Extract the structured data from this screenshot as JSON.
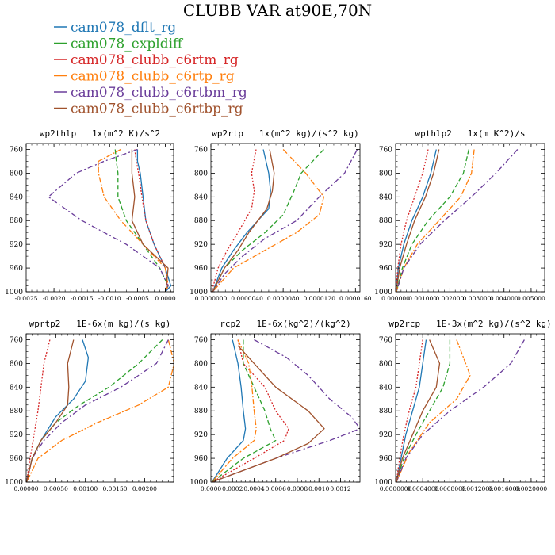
{
  "title": "CLUBB VAR at90E,70N",
  "series_styles": [
    {
      "color": "#1f77b4",
      "dash": ""
    },
    {
      "color": "#2ca02c",
      "dash": "6,3"
    },
    {
      "color": "#d62728",
      "dash": "2,2"
    },
    {
      "color": "#ff7f0e",
      "dash": "7,2,2,2"
    },
    {
      "color": "#6a3d9a",
      "dash": "7,3,2,3"
    },
    {
      "color": "#a0522d",
      "dash": ""
    }
  ],
  "legend": [
    "cam078_dflt_rg",
    "cam078_expldiff",
    "cam078_clubb_c6rtm_rg",
    "cam078_clubb_c6rtp_rg",
    "cam078_clubb_c6rtbm_rg",
    "cam078_clubb_c6rtbp_rg"
  ],
  "chart_data": [
    {
      "type": "line",
      "title": "wp2thlp   1x(m^2 K)/s^2",
      "xlim": [
        -0.0025,
        0.00015
      ],
      "ylim": [
        1000,
        750
      ],
      "xticks": [
        -0.0025,
        -0.002,
        -0.0015,
        -0.001,
        -0.0005,
        0
      ],
      "xtick_labels": [
        "-0.0025",
        "-0.0020",
        "-0.0015",
        "-0.0010",
        "-0.0005",
        "0.0000"
      ],
      "yticks": [
        760,
        800,
        840,
        880,
        920,
        960,
        1000
      ],
      "series": [
        {
          "name": "cam078_dflt_rg",
          "x": [
            -0.0005,
            -0.0005,
            -0.00045,
            -0.0004,
            -0.00035,
            -0.0002,
            0.0,
            0.0001,
            0.0
          ],
          "y": [
            760,
            780,
            800,
            840,
            880,
            920,
            960,
            990,
            1000
          ]
        },
        {
          "name": "cam078_expldiff",
          "x": [
            -0.0009,
            -0.00088,
            -0.00085,
            -0.00085,
            -0.0007,
            -0.0004,
            -0.0001,
            5e-05,
            0.0
          ],
          "y": [
            760,
            780,
            800,
            840,
            880,
            920,
            960,
            990,
            1000
          ]
        },
        {
          "name": "cam078_clubb_c6rtm_rg",
          "x": [
            -0.00055,
            -0.00052,
            -0.00048,
            -0.00042,
            -0.00035,
            -0.0002,
            0.0,
            5e-05,
            0.0
          ],
          "y": [
            760,
            780,
            800,
            840,
            880,
            920,
            960,
            990,
            1000
          ]
        },
        {
          "name": "cam078_clubb_c6rtp_rg",
          "x": [
            -0.0008,
            -0.0012,
            -0.0012,
            -0.0011,
            -0.0008,
            -0.0004,
            0.0,
            5e-05,
            0.0
          ],
          "y": [
            760,
            780,
            800,
            840,
            880,
            920,
            960,
            990,
            1000
          ]
        },
        {
          "name": "cam078_clubb_c6rtbm_rg",
          "x": [
            -0.0005,
            -0.0011,
            -0.0016,
            -0.0021,
            -0.0015,
            -0.0007,
            -0.0001,
            5e-05,
            0.0
          ],
          "y": [
            760,
            780,
            800,
            840,
            880,
            920,
            960,
            990,
            1000
          ]
        },
        {
          "name": "cam078_clubb_c6rtbp_rg",
          "x": [
            -0.0006,
            -0.0006,
            -0.0006,
            -0.00055,
            -0.0006,
            -0.0004,
            5e-05,
            2e-05,
            0.0
          ],
          "y": [
            760,
            780,
            800,
            840,
            880,
            920,
            960,
            990,
            1000
          ]
        }
      ]
    },
    {
      "type": "line",
      "title": "wp2rtp   1x(m^2 kg)/(s^2 kg)",
      "xlim": [
        0,
        1.65e-05
      ],
      "ylim": [
        1000,
        750
      ],
      "xticks": [
        0,
        4e-06,
        8e-06,
        1.2e-05,
        1.6e-05
      ],
      "xtick_labels": [
        "0.0000000",
        "0.0000040",
        "0.0000080",
        "0.0000120",
        "0.0000160"
      ],
      "yticks": [
        760,
        800,
        840,
        880,
        920,
        960,
        1000
      ],
      "series": [
        {
          "name": "cam078_dflt_rg",
          "x": [
            5.8e-06,
            6.4e-06,
            6.6e-06,
            6.4e-06,
            4e-06,
            2.5e-06,
            1.2e-06,
            2e-07
          ],
          "y": [
            760,
            800,
            830,
            860,
            900,
            930,
            960,
            1000
          ]
        },
        {
          "name": "cam078_expldiff",
          "x": [
            1.25e-05,
            1e-05,
            9.2e-06,
            8e-06,
            6e-06,
            3.5e-06,
            1.5e-06,
            2e-07
          ],
          "y": [
            760,
            800,
            830,
            870,
            900,
            930,
            960,
            1000
          ]
        },
        {
          "name": "cam078_clubb_c6rtm_rg",
          "x": [
            5e-06,
            4.5e-06,
            4.8e-06,
            4.5e-06,
            3e-06,
            1.8e-06,
            8e-07,
            1e-07
          ],
          "y": [
            760,
            800,
            830,
            860,
            900,
            930,
            960,
            1000
          ]
        },
        {
          "name": "cam078_clubb_c6rtp_rg",
          "x": [
            8e-06,
            1.05e-05,
            1.25e-05,
            1.2e-05,
            9.5e-06,
            6e-06,
            2.5e-06,
            2e-07
          ],
          "y": [
            760,
            800,
            840,
            870,
            900,
            930,
            960,
            1000
          ]
        },
        {
          "name": "cam078_clubb_c6rtbm_rg",
          "x": [
            1.62e-05,
            1.48e-05,
            1.2e-05,
            9.5e-06,
            6e-06,
            3.5e-06,
            1.5e-06,
            2e-07
          ],
          "y": [
            760,
            800,
            840,
            880,
            910,
            940,
            970,
            1000
          ]
        },
        {
          "name": "cam078_clubb_c6rtbp_rg",
          "x": [
            6.5e-06,
            7e-06,
            6.8e-06,
            6.2e-06,
            4.2e-06,
            3e-06,
            1.5e-06,
            2e-07
          ],
          "y": [
            760,
            800,
            830,
            860,
            900,
            930,
            960,
            1000
          ]
        }
      ]
    },
    {
      "type": "line",
      "title": "wpthlp2   1x(m K^2)/s",
      "xlim": [
        0,
        0.0055
      ],
      "ylim": [
        1000,
        750
      ],
      "xticks": [
        0,
        0.001,
        0.002,
        0.003,
        0.004,
        0.005
      ],
      "xtick_labels": [
        "0.000000",
        "0.001000",
        "0.002000",
        "0.003000",
        "0.004000",
        "0.005000"
      ],
      "yticks": [
        760,
        800,
        840,
        880,
        920,
        960,
        1000
      ],
      "series": [
        {
          "name": "cam078_dflt_rg",
          "x": [
            0.0015,
            0.0013,
            0.001,
            0.0006,
            0.0003,
            0.0001,
            2e-05
          ],
          "y": [
            760,
            800,
            840,
            880,
            920,
            960,
            1000
          ]
        },
        {
          "name": "cam078_expldiff",
          "x": [
            0.0027,
            0.0025,
            0.002,
            0.0012,
            0.0006,
            0.00025,
            3e-05
          ],
          "y": [
            760,
            800,
            840,
            880,
            920,
            960,
            1000
          ]
        },
        {
          "name": "cam078_clubb_c6rtm_rg",
          "x": [
            0.0012,
            0.001,
            0.0007,
            0.0004,
            0.0002,
            8e-05,
            1e-05
          ],
          "y": [
            760,
            800,
            840,
            880,
            920,
            960,
            1000
          ]
        },
        {
          "name": "cam078_clubb_c6rtp_rg",
          "x": [
            0.0029,
            0.0028,
            0.0024,
            0.0016,
            0.0008,
            0.0003,
            3e-05
          ],
          "y": [
            760,
            800,
            840,
            880,
            920,
            960,
            1000
          ]
        },
        {
          "name": "cam078_clubb_c6rtbm_rg",
          "x": [
            0.0045,
            0.0037,
            0.0028,
            0.0018,
            0.0009,
            0.0003,
            3e-05
          ],
          "y": [
            760,
            800,
            840,
            880,
            920,
            960,
            1000
          ]
        },
        {
          "name": "cam078_clubb_c6rtbp_rg",
          "x": [
            0.0016,
            0.0014,
            0.0011,
            0.0007,
            0.0004,
            0.00015,
            2e-05
          ],
          "y": [
            760,
            800,
            840,
            880,
            920,
            960,
            1000
          ]
        }
      ]
    },
    {
      "type": "line",
      "title": "wprtp2   1E-6x(m kg)/(s kg)",
      "xlim": [
        0,
        0.00249
      ],
      "ylim": [
        1000,
        750
      ],
      "xticks": [
        0,
        0.0005,
        0.001,
        0.0015,
        0.002
      ],
      "xtick_labels": [
        "0.00000",
        "0.00050",
        "0.00100",
        "0.00150",
        "0.00200"
      ],
      "yticks": [
        760,
        800,
        840,
        880,
        920,
        960,
        1000
      ],
      "series": [
        {
          "name": "cam078_dflt_rg",
          "x": [
            0.00095,
            0.00105,
            0.001,
            0.0008,
            0.0005,
            0.00025,
            0.0001,
            1e-05
          ],
          "y": [
            760,
            790,
            830,
            860,
            890,
            930,
            960,
            1000
          ]
        },
        {
          "name": "cam078_expldiff",
          "x": [
            0.0023,
            0.0019,
            0.0014,
            0.0009,
            0.0005,
            0.00025,
            0.0001,
            1e-05
          ],
          "y": [
            760,
            800,
            840,
            870,
            900,
            930,
            960,
            1000
          ]
        },
        {
          "name": "cam078_clubb_c6rtm_rg",
          "x": [
            0.0004,
            0.0003,
            0.00025,
            0.0002,
            0.00015,
            0.0001,
            5e-05,
            1e-05
          ],
          "y": [
            760,
            800,
            840,
            880,
            910,
            940,
            970,
            1000
          ]
        },
        {
          "name": "cam078_clubb_c6rtp_rg",
          "x": [
            0.0024,
            0.0025,
            0.0024,
            0.0019,
            0.0012,
            0.0006,
            0.0002,
            1e-05
          ],
          "y": [
            760,
            800,
            840,
            870,
            900,
            930,
            960,
            1000
          ]
        },
        {
          "name": "cam078_clubb_c6rtbm_rg",
          "x": [
            0.0024,
            0.0022,
            0.0016,
            0.001,
            0.0006,
            0.0003,
            0.0001,
            1e-05
          ],
          "y": [
            760,
            800,
            840,
            870,
            900,
            930,
            960,
            1000
          ]
        },
        {
          "name": "cam078_clubb_c6rtbp_rg",
          "x": [
            0.0008,
            0.0007,
            0.00072,
            0.0007,
            0.0005,
            0.00025,
            0.0001,
            1e-05
          ],
          "y": [
            760,
            800,
            840,
            870,
            900,
            930,
            960,
            1000
          ]
        }
      ]
    },
    {
      "type": "line",
      "title": "rcp2   1E-6x(kg^2)/(kg^2)",
      "xlim": [
        0,
        0.00138
      ],
      "ylim": [
        1000,
        750
      ],
      "xticks": [
        0,
        0.0002,
        0.0004,
        0.0006,
        0.0008,
        0.001,
        0.0012
      ],
      "xtick_labels": [
        "0.0000",
        "0.0002",
        "0.0004",
        "0.0006",
        "0.0008",
        "0.0010",
        "0.0012"
      ],
      "yticks": [
        760,
        800,
        840,
        880,
        920,
        960,
        1000
      ],
      "series": [
        {
          "name": "cam078_dflt_rg",
          "x": [
            0.0002,
            0.00025,
            0.00028,
            0.0003,
            0.00032,
            0.0003,
            0.00015,
            1e-05
          ],
          "y": [
            760,
            800,
            840,
            880,
            910,
            930,
            960,
            1000
          ]
        },
        {
          "name": "cam078_expldiff",
          "x": [
            0.0003,
            0.0003,
            0.0004,
            0.0005,
            0.00055,
            0.0006,
            0.0003,
            1e-05
          ],
          "y": [
            760,
            800,
            840,
            880,
            910,
            930,
            960,
            1000
          ]
        },
        {
          "name": "cam078_clubb_c6rtm_rg",
          "x": [
            0.00025,
            0.0003,
            0.0005,
            0.0006,
            0.00072,
            0.00068,
            0.0004,
            1e-05
          ],
          "y": [
            760,
            800,
            840,
            880,
            910,
            930,
            960,
            1000
          ]
        },
        {
          "name": "cam078_clubb_c6rtp_rg",
          "x": [
            0.00025,
            0.00035,
            0.00038,
            0.0004,
            0.00042,
            0.0004,
            0.0002,
            1e-05
          ],
          "y": [
            760,
            800,
            840,
            880,
            910,
            930,
            960,
            1000
          ]
        },
        {
          "name": "cam078_clubb_c6rtbm_rg",
          "x": [
            0.0004,
            0.0007,
            0.0009,
            0.0011,
            0.0013,
            0.00138,
            0.0011,
            0.0006,
            1e-05
          ],
          "y": [
            760,
            790,
            820,
            860,
            890,
            910,
            930,
            960,
            1000
          ]
        },
        {
          "name": "cam078_clubb_c6rtbp_rg",
          "x": [
            0.00025,
            0.0004,
            0.0006,
            0.0009,
            0.00105,
            0.0009,
            0.0006,
            1e-05
          ],
          "y": [
            770,
            800,
            840,
            880,
            910,
            935,
            960,
            1000
          ]
        }
      ]
    },
    {
      "type": "line",
      "title": "wp2rcp   1E-3x(m^2 kg)/(s^2 kg)",
      "xlim": [
        0,
        0.0022
      ],
      "ylim": [
        1000,
        750
      ],
      "xticks": [
        0,
        0.0004,
        0.0008,
        0.0012,
        0.0016,
        0.002
      ],
      "xtick_labels": [
        "0.0000000",
        "0.0004000",
        "0.0008000",
        "0.0012000",
        "0.0016000",
        "0.0020000"
      ],
      "yticks": [
        760,
        800,
        840,
        880,
        920,
        960,
        1000
      ],
      "series": [
        {
          "name": "cam078_dflt_rg",
          "x": [
            0.00045,
            0.0004,
            0.00035,
            0.00025,
            0.00015,
            8e-05,
            1e-05
          ],
          "y": [
            760,
            800,
            840,
            880,
            920,
            960,
            1000
          ]
        },
        {
          "name": "cam078_expldiff",
          "x": [
            0.0008,
            0.0008,
            0.0007,
            0.0005,
            0.0003,
            0.00012,
            1e-05
          ],
          "y": [
            760,
            800,
            840,
            880,
            920,
            960,
            1000
          ]
        },
        {
          "name": "cam078_clubb_c6rtm_rg",
          "x": [
            0.0004,
            0.00035,
            0.0003,
            0.0002,
            0.00012,
            6e-05,
            1e-05
          ],
          "y": [
            760,
            800,
            840,
            880,
            920,
            960,
            1000
          ]
        },
        {
          "name": "cam078_clubb_c6rtp_rg",
          "x": [
            0.0009,
            0.001,
            0.0011,
            0.0009,
            0.0005,
            0.0002,
            1e-05
          ],
          "y": [
            760,
            790,
            820,
            860,
            900,
            950,
            1000
          ]
        },
        {
          "name": "cam078_clubb_c6rtbm_rg",
          "x": [
            0.0019,
            0.0017,
            0.0013,
            0.0008,
            0.0004,
            0.00015,
            1e-05
          ],
          "y": [
            760,
            800,
            840,
            880,
            920,
            960,
            1000
          ]
        },
        {
          "name": "cam078_clubb_c6rtbp_rg",
          "x": [
            0.0005,
            0.00065,
            0.0006,
            0.0004,
            0.00025,
            0.0001,
            1e-05
          ],
          "y": [
            760,
            800,
            840,
            880,
            920,
            960,
            1000
          ]
        }
      ]
    }
  ]
}
